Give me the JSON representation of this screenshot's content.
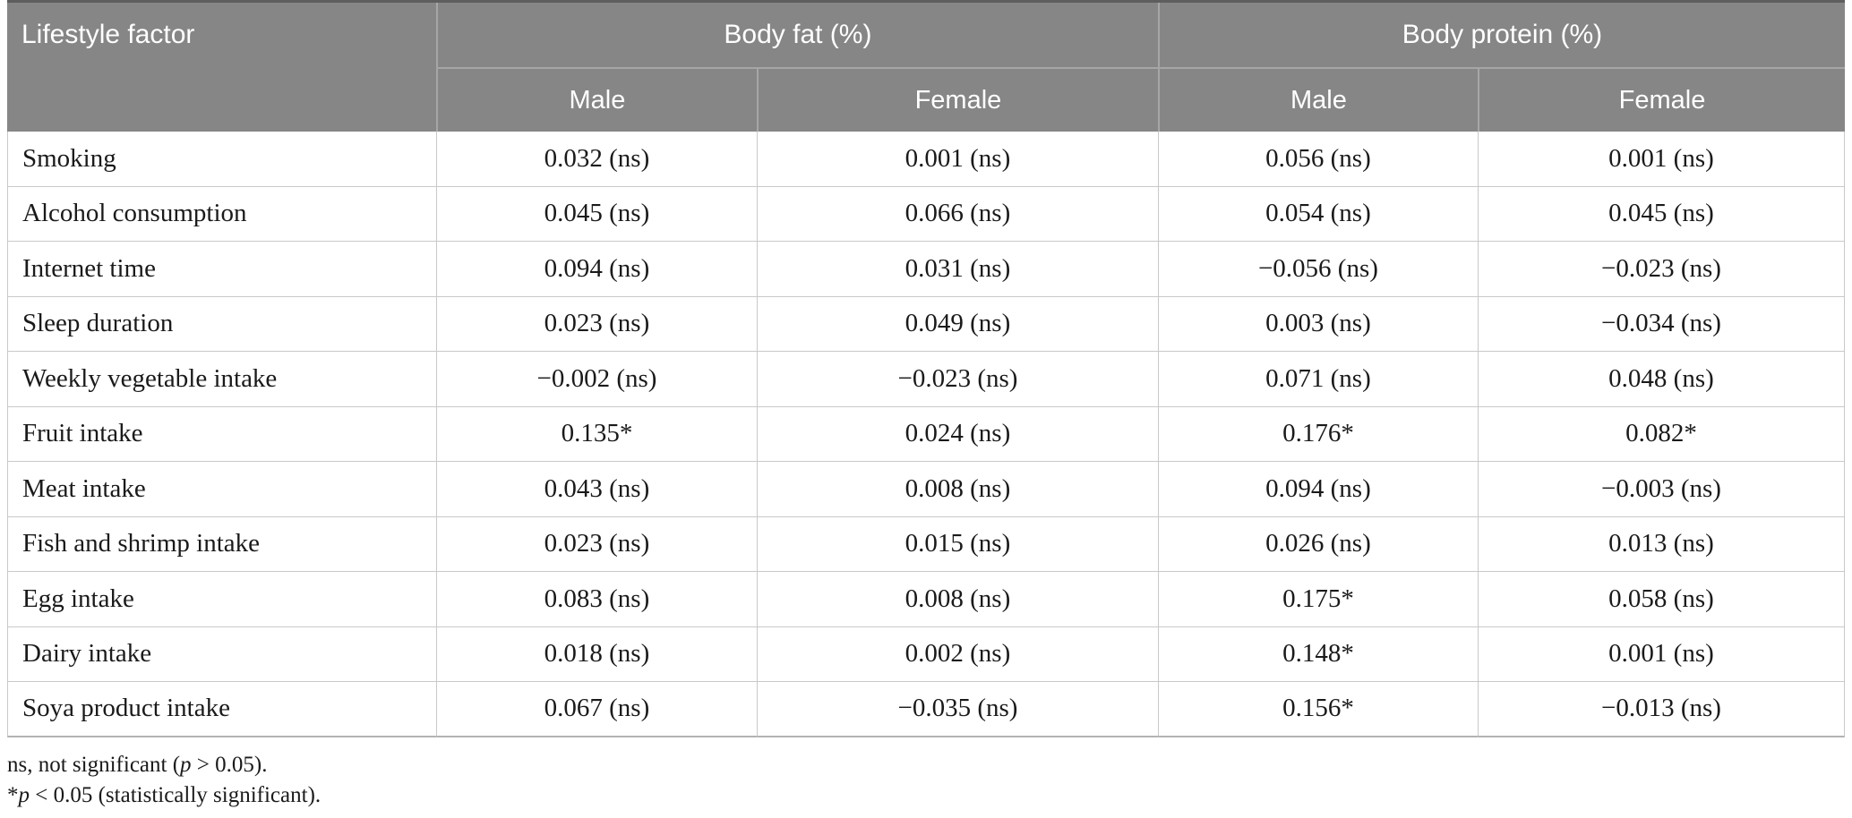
{
  "colors": {
    "header_bg": "#868686",
    "header_text": "#ffffff",
    "header_divider": "#a6a6a6",
    "top_border": "#5e5e5e",
    "row_divider": "#c9c9c9",
    "bottom_border": "#b3b3b3",
    "text": "#1a1a1a",
    "page_bg": "#ffffff"
  },
  "table": {
    "col1_header": "Lifestyle factor",
    "groups": [
      {
        "label": "Body fat (%)",
        "sub": [
          "Male",
          "Female"
        ]
      },
      {
        "label": "Body protein (%)",
        "sub": [
          "Male",
          "Female"
        ]
      }
    ],
    "rows": [
      {
        "factor": "Smoking",
        "values": [
          "0.032 (ns)",
          "0.001 (ns)",
          "0.056 (ns)",
          "0.001 (ns)"
        ]
      },
      {
        "factor": "Alcohol consumption",
        "values": [
          "0.045 (ns)",
          "0.066 (ns)",
          "0.054 (ns)",
          "0.045 (ns)"
        ]
      },
      {
        "factor": "Internet time",
        "values": [
          "0.094 (ns)",
          "0.031 (ns)",
          "−0.056 (ns)",
          "−0.023 (ns)"
        ]
      },
      {
        "factor": "Sleep duration",
        "values": [
          "0.023 (ns)",
          "0.049 (ns)",
          "0.003 (ns)",
          "−0.034 (ns)"
        ]
      },
      {
        "factor": "Weekly vegetable intake",
        "values": [
          "−0.002 (ns)",
          "−0.023 (ns)",
          "0.071 (ns)",
          "0.048 (ns)"
        ]
      },
      {
        "factor": "Fruit intake",
        "values": [
          "0.135*",
          "0.024 (ns)",
          "0.176*",
          "0.082*"
        ]
      },
      {
        "factor": "Meat intake",
        "values": [
          "0.043 (ns)",
          "0.008 (ns)",
          "0.094 (ns)",
          "−0.003 (ns)"
        ]
      },
      {
        "factor": "Fish and shrimp intake",
        "values": [
          "0.023 (ns)",
          "0.015 (ns)",
          "0.026 (ns)",
          "0.013 (ns)"
        ]
      },
      {
        "factor": "Egg intake",
        "values": [
          "0.083 (ns)",
          "0.008 (ns)",
          "0.175*",
          "0.058 (ns)"
        ]
      },
      {
        "factor": "Dairy intake",
        "values": [
          "0.018 (ns)",
          "0.002 (ns)",
          "0.148*",
          "0.001 (ns)"
        ]
      },
      {
        "factor": "Soya product intake",
        "values": [
          "0.067 (ns)",
          "−0.035 (ns)",
          "0.156*",
          "−0.013 (ns)"
        ]
      }
    ],
    "footnotes": [
      [
        {
          "text": "ns, not significant ("
        },
        {
          "text": "p",
          "italic": true
        },
        {
          "text": " > 0.05)."
        }
      ],
      [
        {
          "text": "*"
        },
        {
          "text": "p",
          "italic": true
        },
        {
          "text": " < 0.05 (statistically significant)."
        }
      ]
    ]
  }
}
